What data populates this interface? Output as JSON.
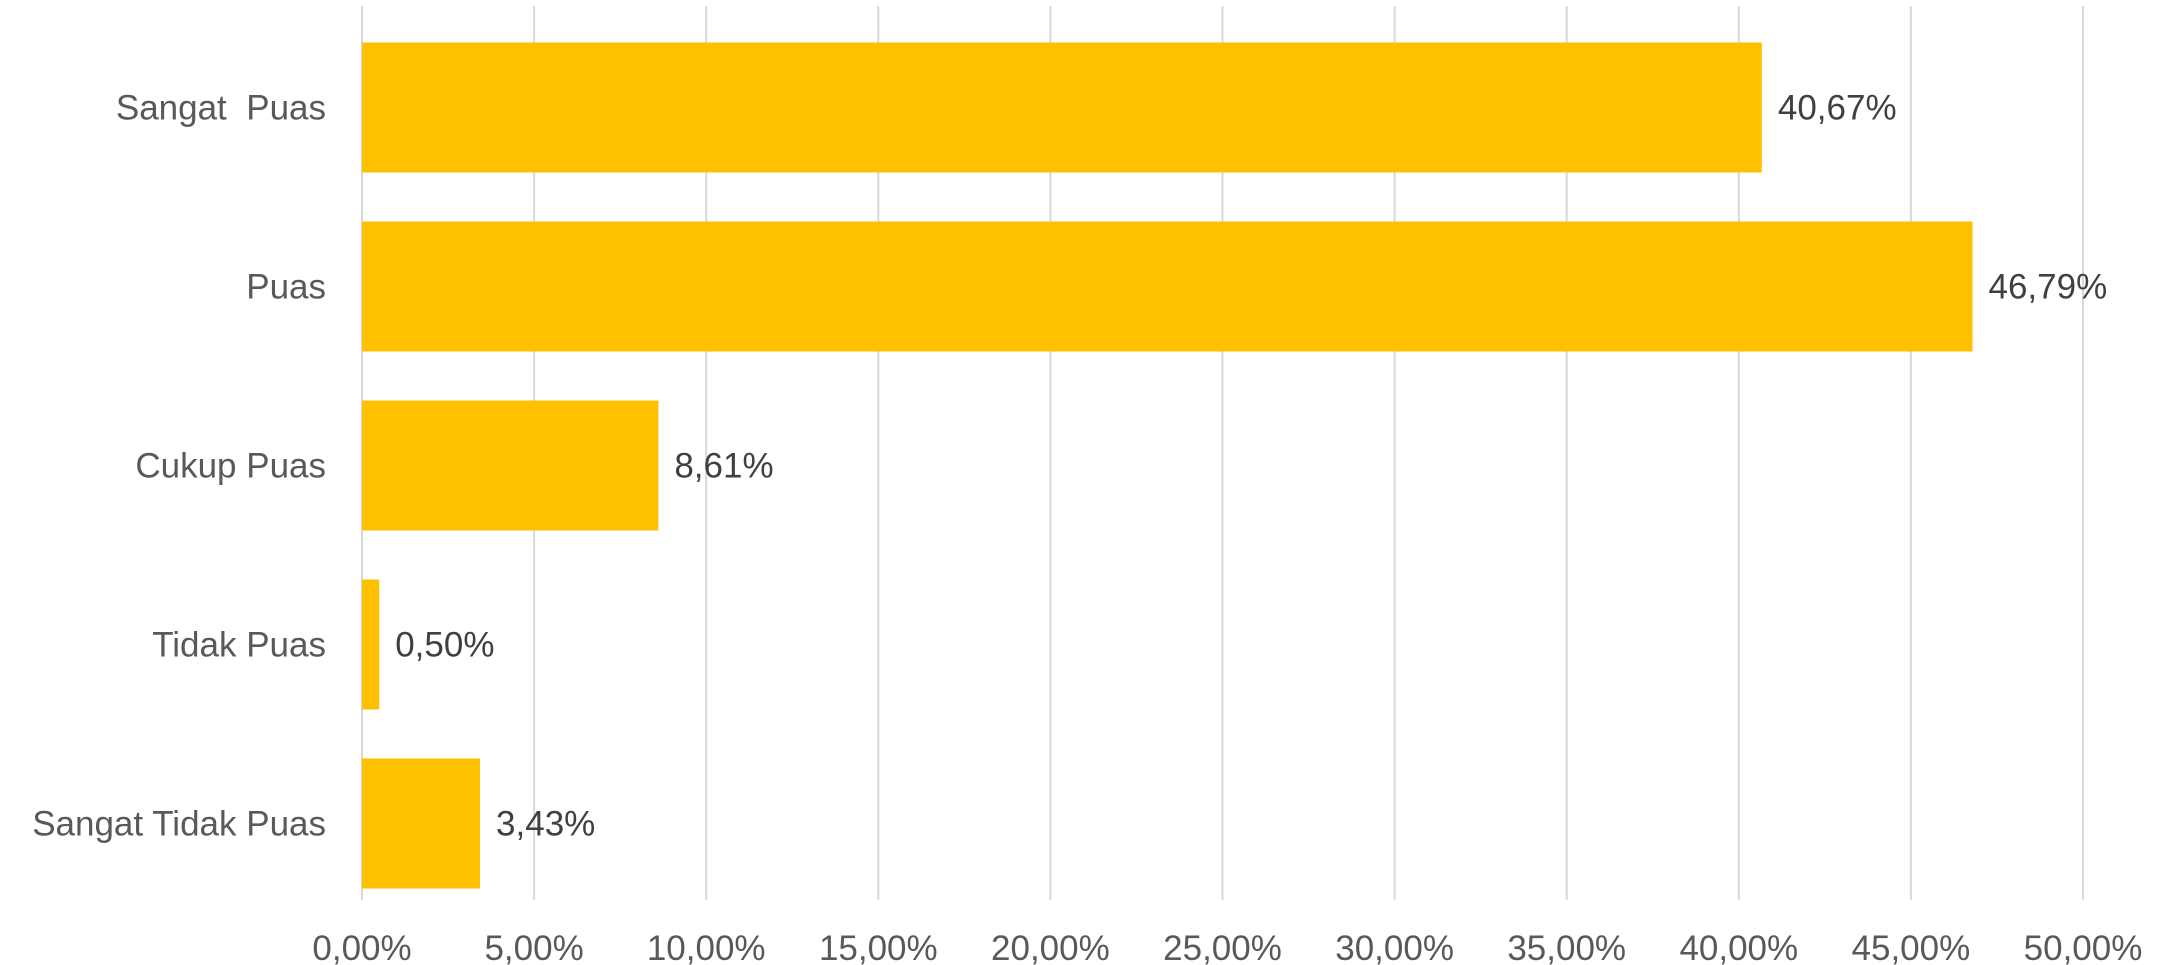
{
  "chart_data": {
    "type": "bar",
    "orientation": "horizontal",
    "title": "",
    "xlabel": "",
    "ylabel": "",
    "categories": [
      "Sangat  Puas",
      "Puas",
      "Cukup Puas",
      "Tidak Puas",
      "Sangat Tidak Puas"
    ],
    "values": [
      40.67,
      46.79,
      8.61,
      0.5,
      3.43
    ],
    "value_labels": [
      "40,67%",
      "46,79%",
      "8,61%",
      "0,50%",
      "3,43%"
    ],
    "xlim": [
      0,
      50
    ],
    "x_ticks": [
      0,
      5,
      10,
      15,
      20,
      25,
      30,
      35,
      40,
      45,
      50
    ],
    "x_tick_labels": [
      "0,00%",
      "5,00%",
      "10,00%",
      "15,00%",
      "20,00%",
      "25,00%",
      "30,00%",
      "35,00%",
      "40,00%",
      "45,00%",
      "50,00%"
    ],
    "grid": true,
    "legend": "none",
    "bar_color": "#FFC000"
  }
}
